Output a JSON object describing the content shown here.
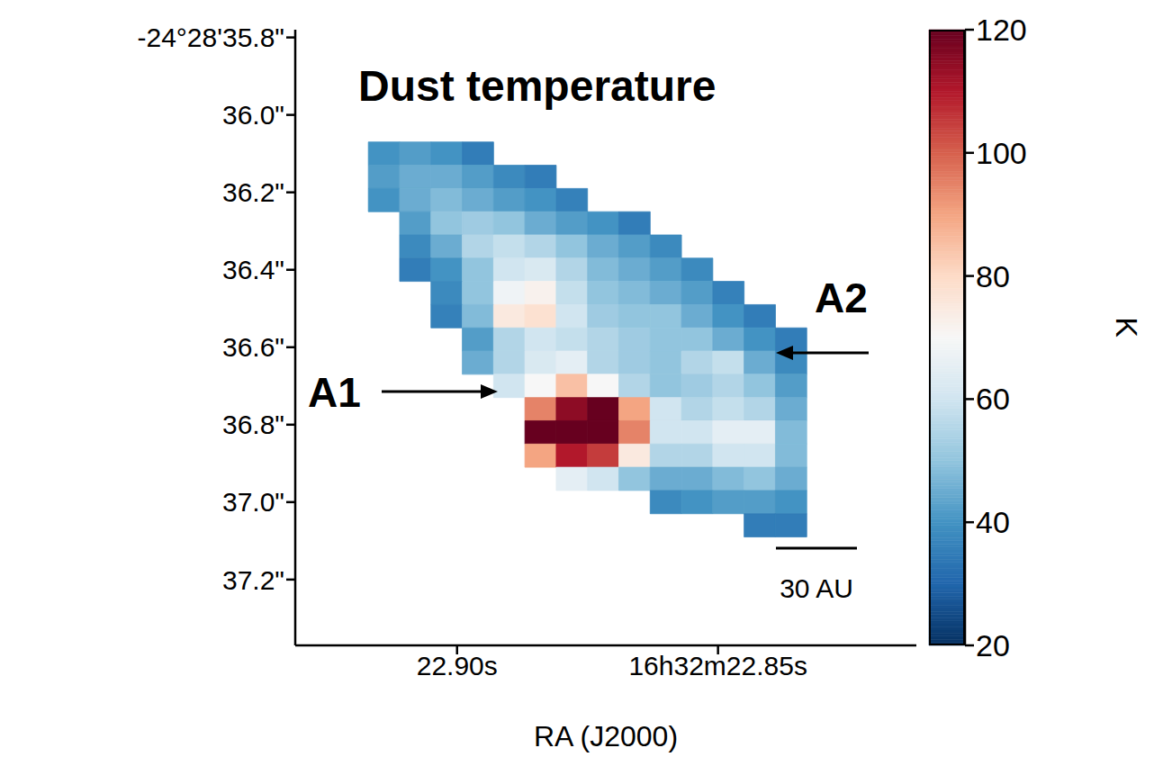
{
  "chart_data": {
    "type": "heatmap",
    "title": "Dust temperature",
    "x_label": "RA (J2000)",
    "xlim": [
      22.931,
      22.812
    ],
    "xticks": [
      {
        "value": 22.9,
        "label": "22.90s"
      },
      {
        "value": 22.85,
        "label": "16h32m22.85s"
      }
    ],
    "ylim": [
      37.37,
      35.78
    ],
    "yticks": [
      {
        "value": 35.8,
        "label": "-24°28'35.8\""
      },
      {
        "value": 36.0,
        "label": "36.0\""
      },
      {
        "value": 36.2,
        "label": "36.2\""
      },
      {
        "value": 36.4,
        "label": "36.4\""
      },
      {
        "value": 36.6,
        "label": "36.6\""
      },
      {
        "value": 36.8,
        "label": "36.8\""
      },
      {
        "value": 37.0,
        "label": "37.0\""
      },
      {
        "value": 37.2,
        "label": "37.2\""
      }
    ],
    "cells": {
      "x": [
        22.914,
        22.908,
        22.902,
        22.896,
        22.89,
        22.884,
        22.878,
        22.872,
        22.866,
        22.86,
        22.854,
        22.848,
        22.842,
        22.836
      ],
      "y": [
        36.1,
        36.16,
        36.22,
        36.28,
        36.34,
        36.4,
        36.46,
        36.52,
        36.58,
        36.64,
        36.7,
        36.76,
        36.82,
        36.88,
        36.94,
        37.0,
        37.06
      ],
      "values": [
        [
          40,
          42,
          40,
          35,
          null,
          null,
          null,
          null,
          null,
          null,
          null,
          null,
          null,
          null
        ],
        [
          42,
          45,
          45,
          42,
          38,
          35,
          null,
          null,
          null,
          null,
          null,
          null,
          null,
          null
        ],
        [
          40,
          45,
          48,
          45,
          42,
          40,
          36,
          null,
          null,
          null,
          null,
          null,
          null,
          null
        ],
        [
          null,
          42,
          50,
          52,
          50,
          45,
          42,
          40,
          35,
          null,
          null,
          null,
          null,
          null
        ],
        [
          null,
          38,
          45,
          55,
          58,
          55,
          50,
          45,
          42,
          38,
          null,
          null,
          null,
          null
        ],
        [
          null,
          35,
          40,
          50,
          60,
          62,
          55,
          48,
          45,
          42,
          38,
          null,
          null,
          null
        ],
        [
          null,
          null,
          38,
          50,
          68,
          72,
          58,
          50,
          48,
          45,
          42,
          36,
          null,
          null
        ],
        [
          null,
          null,
          36,
          48,
          75,
          78,
          60,
          52,
          50,
          50,
          45,
          40,
          35,
          null
        ],
        [
          null,
          null,
          null,
          42,
          55,
          60,
          58,
          55,
          52,
          50,
          50,
          45,
          40,
          35
        ],
        [
          null,
          null,
          null,
          45,
          55,
          62,
          65,
          55,
          52,
          50,
          55,
          58,
          45,
          38
        ],
        [
          null,
          null,
          null,
          null,
          60,
          70,
          85,
          70,
          55,
          50,
          52,
          55,
          50,
          42
        ],
        [
          null,
          null,
          null,
          null,
          null,
          95,
          115,
          120,
          90,
          60,
          55,
          58,
          55,
          45
        ],
        [
          null,
          null,
          null,
          null,
          null,
          120,
          120,
          120,
          95,
          60,
          60,
          65,
          65,
          48
        ],
        [
          null,
          null,
          null,
          null,
          null,
          90,
          110,
          105,
          75,
          55,
          55,
          60,
          60,
          48
        ],
        [
          null,
          null,
          null,
          null,
          null,
          null,
          65,
          60,
          50,
          45,
          45,
          48,
          50,
          45
        ],
        [
          null,
          null,
          null,
          null,
          null,
          null,
          null,
          null,
          null,
          38,
          40,
          42,
          42,
          40
        ],
        [
          null,
          null,
          null,
          null,
          null,
          null,
          null,
          null,
          null,
          null,
          null,
          null,
          35,
          35
        ]
      ]
    },
    "colorbar": {
      "label": "K",
      "range": [
        20,
        120
      ],
      "ticks": [
        20,
        40,
        60,
        80,
        100,
        120
      ]
    },
    "annotations": [
      "A1",
      "A2",
      "30 AU"
    ]
  }
}
